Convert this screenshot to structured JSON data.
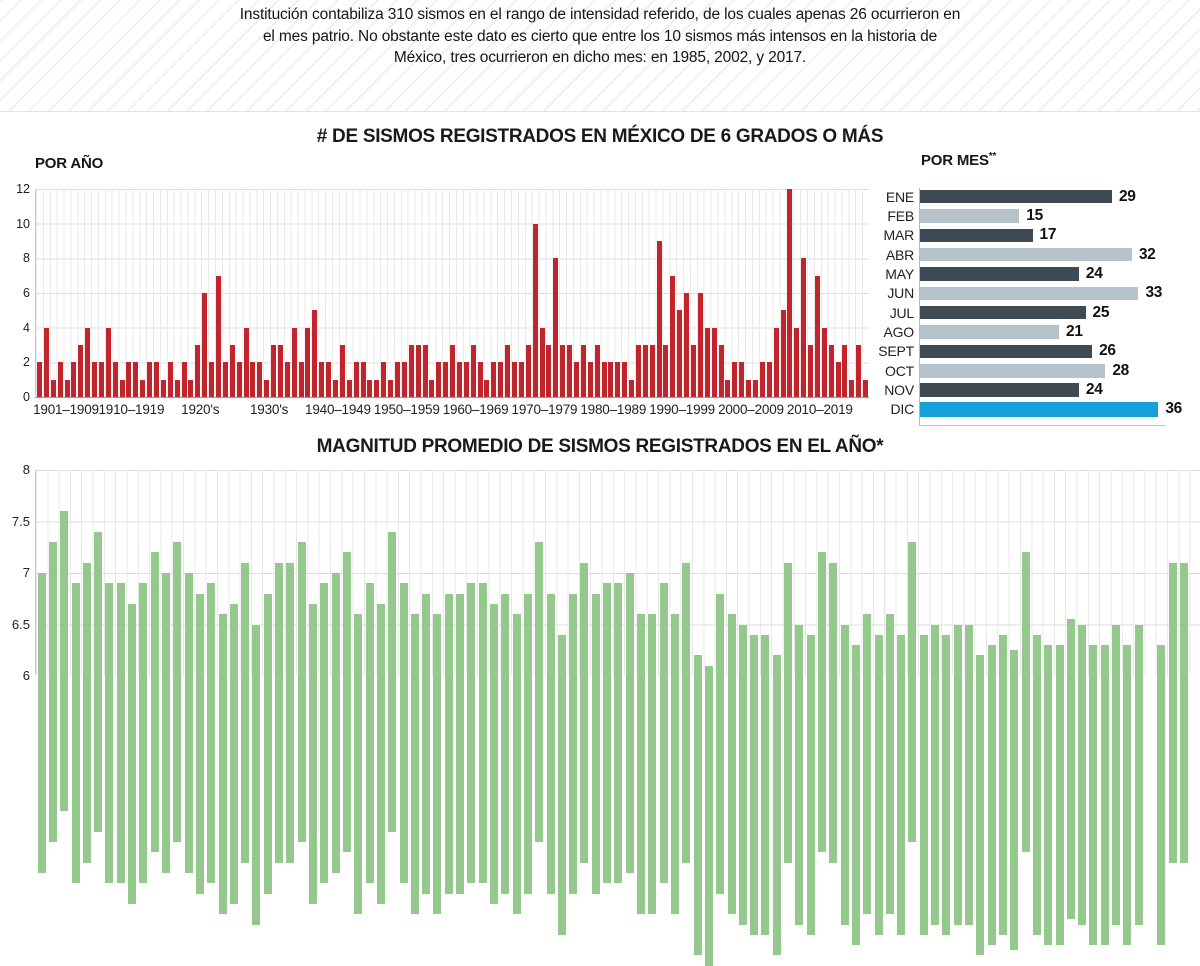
{
  "intro": {
    "lines": [
      "Institución contabiliza 310 sismos en el rango de intensidad referido, de los cuales apenas 26 ocurrieron en",
      "el mes patrio. No obstante este dato es cierto que entre los 10 sismos más intensos en la historia de",
      "México, tres ocurrieron en dicho mes: en 1985, 2002, y 2017."
    ]
  },
  "colors": {
    "annual_bar": "#c2242b",
    "magnitude_bar": "#94c88c",
    "month_dark": "#3e4b54",
    "month_light": "#b7c3ca",
    "month_accent": "#16a0da"
  },
  "chart_data": [
    {
      "id": "annual",
      "type": "bar",
      "title": "# DE SISMOS REGISTRADOS EN MÉXICO DE 6 GRADOS O MÁS",
      "unit_label": "POR AÑO",
      "ylim": [
        0,
        12
      ],
      "y_ticks": [
        12,
        10,
        8,
        6,
        4,
        2,
        0
      ],
      "grid": true,
      "years_start": 1901,
      "x_group_labels": [
        "1901–1909",
        "1910–1919",
        "1920's",
        "1930's",
        "1940–1949",
        "1950–1959",
        "1960–1969",
        "1970–1979",
        "1980–1989",
        "1990–1999",
        "2000–2009",
        "2010–2019"
      ],
      "values": [
        2,
        4,
        1,
        2,
        1,
        2,
        3,
        4,
        2,
        2,
        4,
        2,
        1,
        2,
        2,
        1,
        2,
        2,
        1,
        2,
        1,
        2,
        1,
        3,
        6,
        2,
        7,
        2,
        3,
        2,
        4,
        2,
        2,
        1,
        3,
        3,
        2,
        4,
        2,
        4,
        5,
        2,
        2,
        1,
        3,
        1,
        2,
        2,
        1,
        1,
        2,
        1,
        2,
        2,
        3,
        3,
        3,
        1,
        2,
        2,
        3,
        2,
        2,
        3,
        2,
        1,
        2,
        2,
        3,
        2,
        2,
        3,
        10,
        4,
        3,
        8,
        3,
        3,
        2,
        3,
        2,
        3,
        2,
        2,
        2,
        2,
        1,
        3,
        3,
        3,
        9,
        3,
        7,
        5,
        6,
        3,
        6,
        4,
        4,
        3,
        1,
        2,
        2,
        1,
        1,
        2,
        2,
        4,
        5,
        12,
        4,
        8,
        3,
        7,
        4,
        3,
        2,
        3,
        1,
        3,
        1
      ]
    },
    {
      "id": "monthly",
      "type": "bar-horizontal",
      "title": "POR MES",
      "title_note": "**",
      "categories": [
        "ENE",
        "FEB",
        "MAR",
        "ABR",
        "MAY",
        "JUN",
        "JUL",
        "AGO",
        "SEPT",
        "OCT",
        "NOV",
        "DIC"
      ],
      "values": [
        29,
        15,
        17,
        32,
        24,
        33,
        25,
        21,
        26,
        28,
        24,
        36
      ],
      "tones": [
        "dark",
        "light",
        "dark",
        "light",
        "dark",
        "light",
        "dark",
        "light",
        "dark",
        "light",
        "dark",
        "accent"
      ],
      "legend_position": "none",
      "value_labels": true
    },
    {
      "id": "magnitude",
      "type": "bar",
      "title": "MAGNITUD PROMEDIO DE SISMOS REGISTRADOS EN EL AÑO*",
      "ylim_visible": [
        6,
        8
      ],
      "y_ticks": [
        "8",
        "7.5",
        "7",
        "6.5",
        "6"
      ],
      "grid": true,
      "years_start": 1901,
      "values": [
        7.0,
        7.3,
        7.6,
        6.9,
        7.1,
        7.4,
        6.9,
        6.9,
        6.7,
        6.9,
        7.2,
        7.0,
        7.3,
        7.0,
        6.8,
        6.9,
        6.6,
        6.7,
        7.1,
        6.5,
        6.8,
        7.1,
        7.1,
        7.3,
        6.7,
        6.9,
        7.0,
        7.2,
        6.6,
        6.9,
        6.7,
        7.4,
        6.9,
        6.6,
        6.8,
        6.6,
        6.8,
        6.8,
        6.9,
        6.9,
        6.7,
        6.8,
        6.6,
        6.8,
        7.3,
        6.8,
        6.4,
        6.8,
        7.1,
        6.8,
        6.9,
        6.9,
        7.0,
        6.6,
        6.6,
        6.9,
        6.6,
        7.1,
        6.2,
        6.1,
        6.8,
        6.6,
        6.5,
        6.4,
        6.4,
        6.2,
        7.1,
        6.5,
        6.4,
        7.2,
        7.1,
        6.5,
        6.3,
        6.6,
        6.4,
        6.6,
        6.4,
        7.3,
        6.4,
        6.5,
        6.4,
        6.5,
        6.5,
        6.2,
        6.3,
        6.4,
        6.25,
        7.2,
        6.4,
        6.3,
        6.3,
        6.55,
        6.5,
        6.3,
        6.3,
        6.5,
        6.3,
        6.5,
        null,
        6.3,
        7.1,
        7.1
      ]
    }
  ]
}
